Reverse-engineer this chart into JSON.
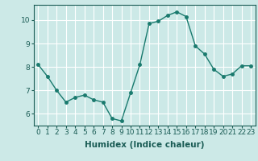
{
  "x": [
    0,
    1,
    2,
    3,
    4,
    5,
    6,
    7,
    8,
    9,
    10,
    11,
    12,
    13,
    14,
    15,
    16,
    17,
    18,
    19,
    20,
    21,
    22,
    23
  ],
  "y": [
    8.1,
    7.6,
    7.0,
    6.5,
    6.7,
    6.8,
    6.6,
    6.5,
    5.8,
    5.7,
    6.9,
    8.1,
    9.85,
    9.95,
    10.2,
    10.35,
    10.15,
    8.9,
    8.55,
    7.9,
    7.6,
    7.7,
    8.05,
    8.05
  ],
  "line_color": "#1a7a6e",
  "marker_color": "#1a7a6e",
  "bg_color": "#cce9e7",
  "grid_color": "#ffffff",
  "axis_color": "#1a5c55",
  "xlabel": "Humidex (Indice chaleur)",
  "xlim": [
    -0.5,
    23.5
  ],
  "ylim": [
    5.5,
    10.65
  ],
  "yticks": [
    6,
    7,
    8,
    9,
    10
  ],
  "xticks": [
    0,
    1,
    2,
    3,
    4,
    5,
    6,
    7,
    8,
    9,
    10,
    11,
    12,
    13,
    14,
    15,
    16,
    17,
    18,
    19,
    20,
    21,
    22,
    23
  ],
  "xlabel_fontsize": 7.5,
  "tick_fontsize": 6.5,
  "marker_size": 2.5,
  "line_width": 1.0
}
